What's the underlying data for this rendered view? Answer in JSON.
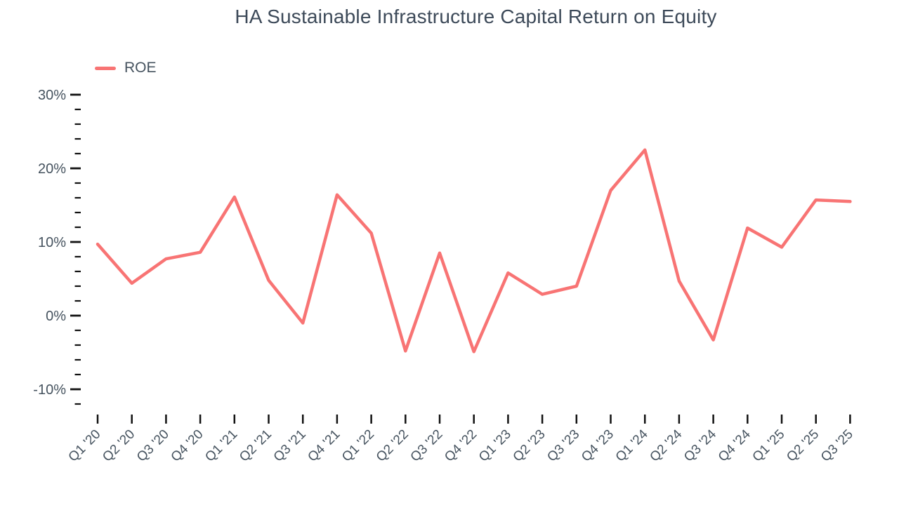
{
  "page": {
    "title": "HA Sustainable Infrastructure Capital Return on Equity"
  },
  "legend": {
    "items": [
      {
        "label": "ROE",
        "color": "#f87474"
      }
    ]
  },
  "chart_data": {
    "type": "line",
    "title": "HA Sustainable Infrastructure Capital Return on Equity",
    "categories": [
      "Q1 '20",
      "Q2 '20",
      "Q3 '20",
      "Q4 '20",
      "Q1 '21",
      "Q2 '21",
      "Q3 '21",
      "Q4 '21",
      "Q1 '22",
      "Q2 '22",
      "Q3 '22",
      "Q4 '22",
      "Q1 '23",
      "Q2 '23",
      "Q3 '23",
      "Q4 '23",
      "Q1 '24",
      "Q2 '24",
      "Q3 '24",
      "Q4 '24",
      "Q1 '25",
      "Q2 '25",
      "Q3 '25"
    ],
    "series": [
      {
        "name": "ROE",
        "color": "#f87474",
        "values": [
          9.7,
          4.4,
          7.7,
          8.6,
          16.1,
          4.8,
          -1.0,
          16.4,
          11.2,
          -4.8,
          8.5,
          -4.9,
          5.8,
          2.9,
          4.0,
          17.0,
          22.5,
          4.7,
          -3.3,
          11.9,
          9.3,
          15.7,
          15.5
        ]
      }
    ],
    "xlabel": "",
    "ylabel": "",
    "y_axis": {
      "min": -12,
      "max": 30,
      "minor_step": 2,
      "major_step": 10,
      "unit": "%",
      "major_tick_labels": [
        "30%",
        "20%",
        "10%",
        "0%",
        "-10%"
      ]
    },
    "grid": false,
    "legend_position": "top-left",
    "tick_color": "#111111",
    "text_color": "#46535f"
  }
}
